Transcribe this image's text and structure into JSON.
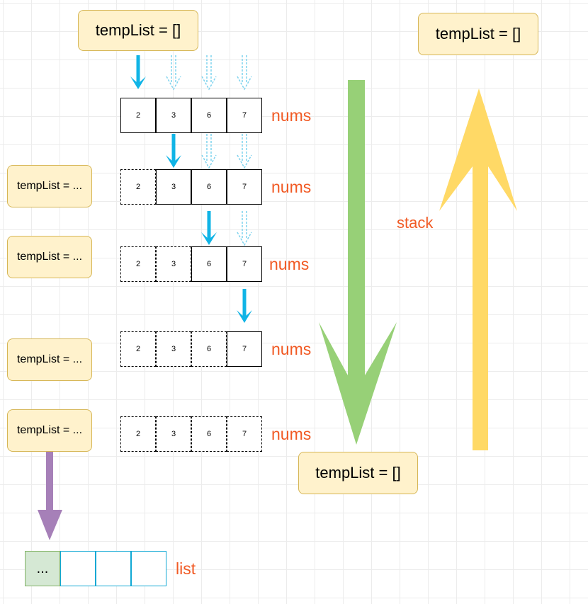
{
  "temp_boxes": {
    "top": "tempList = []",
    "right_top": "tempList = []",
    "bottom": "tempList = []",
    "side": [
      "tempList = ...",
      "tempList = ...",
      "tempList = ...",
      "tempList = ..."
    ]
  },
  "nums": {
    "values": [
      "2",
      "3",
      "6",
      "7"
    ],
    "label": "nums"
  },
  "stack_label": "stack",
  "list": {
    "label": "list",
    "first_cell": "...",
    "cells": 4
  },
  "colors": {
    "cyan": "#10b4e6",
    "green": "#97d077",
    "yellow": "#ffd966",
    "purple": "#a680b8",
    "label": "#f15a24",
    "box_fill": "#fff2cc",
    "box_stroke": "#d6b656"
  }
}
